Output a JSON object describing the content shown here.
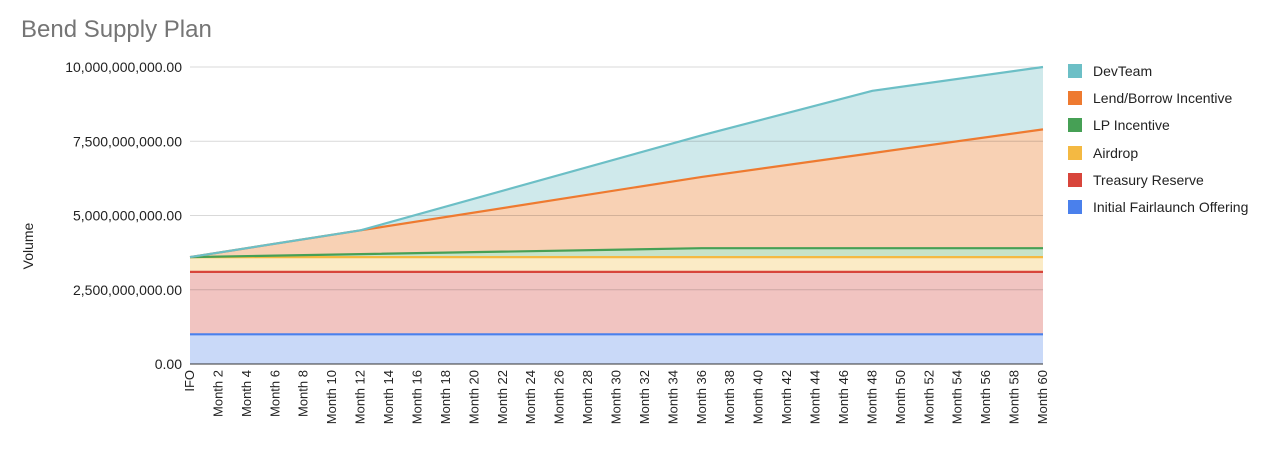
{
  "chart_data": {
    "type": "area",
    "stacked": true,
    "title": "Bend Supply Plan",
    "xlabel": "",
    "ylabel": "Volume",
    "ylim": [
      0,
      10000000000
    ],
    "yticks": [
      "0.00",
      "2,500,000,000.00",
      "5,000,000,000.00",
      "7,500,000,000.00",
      "10,000,000,000.00"
    ],
    "grid": true,
    "legend_position": "right",
    "x_tick_labels": [
      "IFO",
      "Month 2",
      "Month 4",
      "Month 6",
      "Month 8",
      "Month 10",
      "Month 12",
      "Month 14",
      "Month 16",
      "Month 18",
      "Month 20",
      "Month 22",
      "Month 24",
      "Month 26",
      "Month 28",
      "Month 30",
      "Month 32",
      "Month 34",
      "Month 36",
      "Month 38",
      "Month 40",
      "Month 42",
      "Month 44",
      "Month 46",
      "Month 48",
      "Month 50",
      "Month 52",
      "Month 54",
      "Month 56",
      "Month 58",
      "Month 60"
    ],
    "x_months": [
      0,
      12,
      36,
      48,
      60
    ],
    "series": [
      {
        "name": "Initial Fairlaunch Offering",
        "color": "#4a80ec",
        "fill": "#c9d9f8",
        "values": [
          1000000000,
          1000000000,
          1000000000,
          1000000000,
          1000000000
        ]
      },
      {
        "name": "Treasury Reserve",
        "color": "#d8453b",
        "fill": "#f1c4c1",
        "values": [
          2100000000,
          2100000000,
          2100000000,
          2100000000,
          2100000000
        ]
      },
      {
        "name": "Airdrop",
        "color": "#f4b942",
        "fill": "#fbebc6",
        "values": [
          500000000,
          500000000,
          500000000,
          500000000,
          500000000
        ]
      },
      {
        "name": "LP Incentive",
        "color": "#46a055",
        "fill": "#c7e3c9",
        "values": [
          0,
          100000000,
          300000000,
          300000000,
          300000000
        ]
      },
      {
        "name": "Lend/Borrow Incentive",
        "color": "#ee7a30",
        "fill": "#f8d1b4",
        "values": [
          0,
          800000000,
          2400000000,
          3200000000,
          4000000000
        ]
      },
      {
        "name": "DevTeam",
        "color": "#6cbfc6",
        "fill": "#cfe9eb",
        "values": [
          0,
          0,
          1400000000,
          2100000000,
          2100000000
        ]
      }
    ],
    "legend_order": [
      "DevTeam",
      "Lend/Borrow Incentive",
      "LP Incentive",
      "Airdrop",
      "Treasury Reserve",
      "Initial Fairlaunch Offering"
    ]
  }
}
